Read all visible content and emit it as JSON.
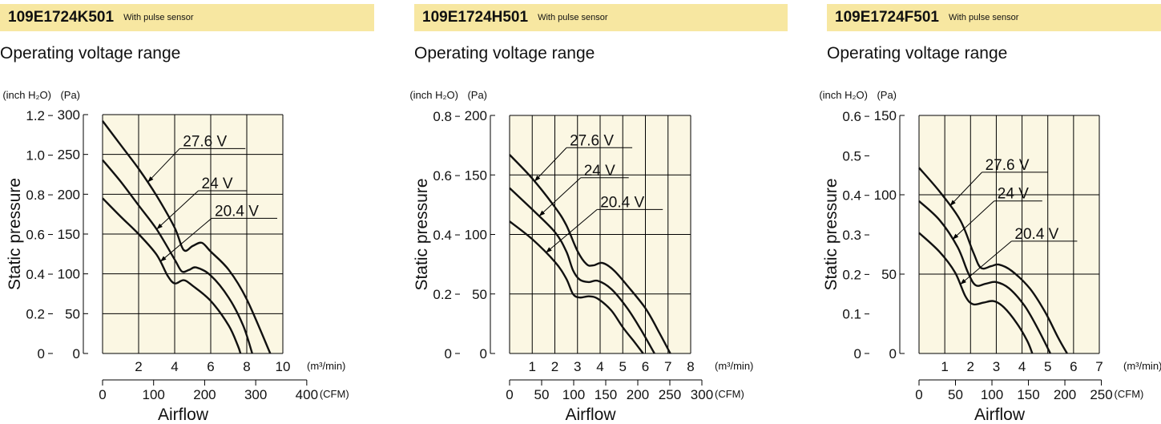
{
  "colors": {
    "header_bg": "#f7e7a1",
    "plot_bg": "#fbf7e3",
    "grid": "#000000",
    "curve": "#111111"
  },
  "panels": [
    {
      "model": "109E1724K501",
      "tag": "With pulse sensor",
      "subtitle": "Operating voltage range"
    },
    {
      "model": "109E1724H501",
      "tag": "With pulse sensor",
      "subtitle": "Operating voltage range"
    },
    {
      "model": "109E1724F501",
      "tag": "With pulse sensor",
      "subtitle": "Operating voltage range"
    }
  ],
  "chart_data": [
    {
      "type": "line",
      "title": "109E1724K501",
      "xlabel": "Airflow",
      "ylabel": "Static pressure",
      "x_unit": "(m³/min)",
      "x2_unit": "(CFM)",
      "y_unit": "(Pa)",
      "y2_unit": "(inch H₂O)",
      "xlim": [
        0,
        10
      ],
      "ylim": [
        0,
        300
      ],
      "x_ticks": [
        2,
        4,
        6,
        8,
        10
      ],
      "x2_ticks": [
        0,
        100,
        200,
        300,
        400
      ],
      "x2_tick_labels": [
        "0",
        "100",
        "200",
        "300",
        "400"
      ],
      "y_ticks": [
        0,
        50,
        100,
        150,
        200,
        250,
        300
      ],
      "y2_ticks": [
        0,
        0.2,
        0.4,
        0.6,
        0.8,
        1.0,
        1.2
      ],
      "y2_tick_labels": [
        "0",
        "0.2",
        "0.4",
        "0.6",
        "0.8",
        "1.0",
        "1.2"
      ],
      "grid": true,
      "series": [
        {
          "name": "27.6 V",
          "points": [
            [
              0,
              292
            ],
            [
              1,
              262
            ],
            [
              2,
              232
            ],
            [
              3,
              198
            ],
            [
              4,
              158
            ],
            [
              4.5,
              130
            ],
            [
              5,
              135
            ],
            [
              5.5,
              139
            ],
            [
              6,
              128
            ],
            [
              7,
              105
            ],
            [
              8,
              68
            ],
            [
              9.3,
              0
            ]
          ]
        },
        {
          "name": "24 V",
          "points": [
            [
              0,
              243
            ],
            [
              1,
              216
            ],
            [
              2,
              186
            ],
            [
              3,
              156
            ],
            [
              4,
              118
            ],
            [
              4.4,
              103
            ],
            [
              4.8,
              105
            ],
            [
              5.2,
              108
            ],
            [
              6,
              98
            ],
            [
              7,
              70
            ],
            [
              7.8,
              35
            ],
            [
              8.3,
              0
            ]
          ]
        },
        {
          "name": "20.4 V",
          "points": [
            [
              0,
              195
            ],
            [
              1,
              172
            ],
            [
              2,
              150
            ],
            [
              3,
              124
            ],
            [
              3.6,
              98
            ],
            [
              4,
              88
            ],
            [
              4.5,
              92
            ],
            [
              5,
              85
            ],
            [
              6,
              66
            ],
            [
              7,
              35
            ],
            [
              7.5,
              10
            ],
            [
              7.65,
              0
            ]
          ]
        }
      ],
      "labels": [
        {
          "text": "27.6 V",
          "series": "27.6 V",
          "at": 2.5
        },
        {
          "text": "24 V",
          "series": "24 V",
          "at": 3.0
        },
        {
          "text": "20.4 V",
          "series": "20.4 V",
          "at": 3.2
        }
      ]
    },
    {
      "type": "line",
      "title": "109E1724H501",
      "xlabel": "Airflow",
      "ylabel": "Static pressure",
      "x_unit": "(m³/min)",
      "x2_unit": "(CFM)",
      "y_unit": "(Pa)",
      "y2_unit": "(inch H₂O)",
      "xlim": [
        0,
        8
      ],
      "ylim": [
        0,
        200
      ],
      "x_ticks": [
        1,
        2,
        3,
        4,
        5,
        6,
        7,
        8
      ],
      "x2_ticks": [
        0,
        50,
        100,
        150,
        200,
        250,
        300
      ],
      "x2_tick_labels": [
        "0",
        "50",
        "100",
        "150",
        "200",
        "250",
        "300"
      ],
      "y_ticks": [
        0,
        50,
        100,
        150,
        200
      ],
      "y2_ticks": [
        0,
        0.2,
        0.4,
        0.6,
        0.8
      ],
      "y2_tick_labels": [
        "0",
        "0.2",
        "0.4",
        "0.6",
        "0.8"
      ],
      "grid": true,
      "series": [
        {
          "name": "27.6 V",
          "points": [
            [
              0,
              167
            ],
            [
              1,
              147
            ],
            [
              2,
              123
            ],
            [
              2.5,
              108
            ],
            [
              3,
              86
            ],
            [
              3.4,
              75
            ],
            [
              3.7,
              74
            ],
            [
              4.1,
              76
            ],
            [
              4.6,
              70
            ],
            [
              5.2,
              57
            ],
            [
              6,
              38
            ],
            [
              6.6,
              18
            ],
            [
              7.1,
              0
            ]
          ]
        },
        {
          "name": "24 V",
          "points": [
            [
              0,
              139
            ],
            [
              1,
              121
            ],
            [
              2,
              102
            ],
            [
              2.5,
              86
            ],
            [
              2.8,
              70
            ],
            [
              3.1,
              62
            ],
            [
              3.5,
              60
            ],
            [
              3.9,
              61
            ],
            [
              4.5,
              54
            ],
            [
              5.2,
              38
            ],
            [
              5.8,
              20
            ],
            [
              6.4,
              0
            ]
          ]
        },
        {
          "name": "20.4 V",
          "points": [
            [
              0,
              111
            ],
            [
              1,
              96
            ],
            [
              2,
              77
            ],
            [
              2.5,
              63
            ],
            [
              2.8,
              50
            ],
            [
              3.1,
              47
            ],
            [
              3.5,
              48
            ],
            [
              3.9,
              46
            ],
            [
              4.5,
              36
            ],
            [
              5,
              22
            ],
            [
              5.5,
              10
            ],
            [
              5.9,
              0
            ]
          ]
        }
      ],
      "labels": [
        {
          "text": "27.6 V",
          "series": "27.6 V",
          "at": 1.1
        },
        {
          "text": "24 V",
          "series": "24 V",
          "at": 1.3
        },
        {
          "text": "20.4 V",
          "series": "20.4 V",
          "at": 1.6
        }
      ]
    },
    {
      "type": "line",
      "title": "109E1724F501",
      "xlabel": "Airflow",
      "ylabel": "Static pressure",
      "x_unit": "(m³/min)",
      "x2_unit": "(CFM)",
      "y_unit": "(Pa)",
      "y2_unit": "(inch H₂O)",
      "xlim": [
        0,
        7
      ],
      "ylim": [
        0,
        150
      ],
      "x_ticks": [
        1,
        2,
        3,
        4,
        5,
        6,
        7
      ],
      "x2_ticks": [
        0,
        50,
        100,
        150,
        200,
        250
      ],
      "x2_tick_labels": [
        "0",
        "50",
        "100",
        "150",
        "200",
        "250"
      ],
      "y_ticks": [
        0,
        50,
        100,
        150
      ],
      "y2_ticks": [
        0,
        0.1,
        0.2,
        0.3,
        0.4,
        0.5,
        0.6
      ],
      "y2_tick_labels": [
        "0",
        "0.1",
        "0.2",
        "0.3",
        "0.4",
        "0.5",
        "0.6"
      ],
      "grid": true,
      "series": [
        {
          "name": "27.6 V",
          "points": [
            [
              0,
              117
            ],
            [
              0.8,
              102
            ],
            [
              1.6,
              84
            ],
            [
              2.1,
              64
            ],
            [
              2.4,
              54
            ],
            [
              2.8,
              55
            ],
            [
              3.1,
              56
            ],
            [
              3.6,
              52
            ],
            [
              4.3,
              41
            ],
            [
              4.9,
              26
            ],
            [
              5.4,
              10
            ],
            [
              5.75,
              0
            ]
          ]
        },
        {
          "name": "24 V",
          "points": [
            [
              0,
              96
            ],
            [
              0.8,
              84
            ],
            [
              1.5,
              67
            ],
            [
              1.9,
              51
            ],
            [
              2.2,
              43
            ],
            [
              2.6,
              44
            ],
            [
              3,
              45
            ],
            [
              3.5,
              41
            ],
            [
              4.1,
              30
            ],
            [
              4.6,
              16
            ],
            [
              5.1,
              0
            ]
          ]
        },
        {
          "name": "20.4 V",
          "points": [
            [
              0,
              76
            ],
            [
              0.8,
              64
            ],
            [
              1.4,
              51
            ],
            [
              1.8,
              36
            ],
            [
              2.1,
              31
            ],
            [
              2.5,
              32
            ],
            [
              2.9,
              33
            ],
            [
              3.3,
              29
            ],
            [
              3.8,
              19
            ],
            [
              4.2,
              8
            ],
            [
              4.4,
              0
            ]
          ]
        }
      ],
      "labels": [
        {
          "text": "27.6 V",
          "series": "27.6 V",
          "at": 1.2
        },
        {
          "text": "24 V",
          "series": "24 V",
          "at": 1.3
        },
        {
          "text": "20.4 V",
          "series": "20.4 V",
          "at": 1.6
        }
      ]
    }
  ]
}
